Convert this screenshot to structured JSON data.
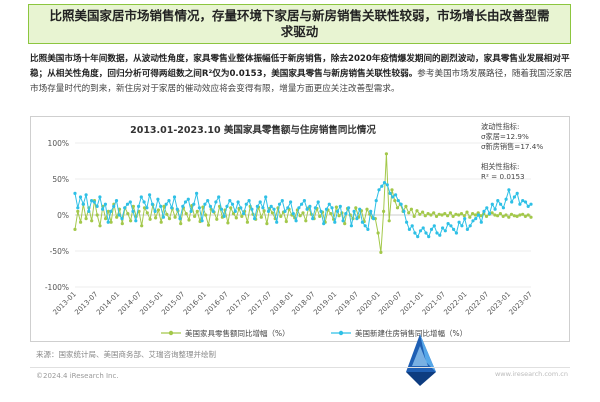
{
  "title": "比照美国家居市场销售情况，存量环境下家居与新房销售关联性较弱，市场增长由改善型需求驱动",
  "summary": {
    "bold": "比照美国市场十年间数据，从波动性角度，家具零售业整体振幅低于新房销售，除去2020年疫情爆发期间的剧烈波动，家具零售业发展相对平稳；从相关性角度，回归分析可得两组数之间R²仅为0.0153，美国家具零售与新房销售关联性较弱。",
    "normal": "参考美国市场发展路径，随着我国泛家居市场存量时代的到来，新住房对于家居的催动效应将会变得有限，增量方面更应关注改善型需求。"
  },
  "source": "来源：国家统计局、美国商务部、艾瑞咨询整理并绘制",
  "copyright": "©2024.4 iResearch Inc.",
  "website": "www.iresearch.com.cn",
  "colors": {
    "furniture": "#a3c84a",
    "housing": "#2ec0e6",
    "accent": "#8cc63f"
  },
  "chart_data": {
    "type": "line",
    "title": "2013.01-2023.10 美国家具零售额与住房销售同比情况",
    "ylim": [
      -100,
      100
    ],
    "yticks": [
      100,
      50,
      0,
      -50,
      -100
    ],
    "ytick_labels": [
      "100%",
      "50%",
      "0%",
      "-50%",
      "-100%"
    ],
    "xtick_labels": [
      "2013-01",
      "2013-07",
      "2014-01",
      "2014-07",
      "2015-01",
      "2015-07",
      "2016-01",
      "2016-07",
      "2017-01",
      "2017-07",
      "2018-01",
      "2018-07",
      "2019-01",
      "2019-07",
      "2020-01",
      "2020-07",
      "2021-01",
      "2021-07",
      "2022-01",
      "2022-07",
      "2023-01",
      "2023-07"
    ],
    "legend_position": "bottom",
    "annotation_volatility": [
      "波动性指标:",
      "σ家居=12.9%",
      "σ新房销售=17.4%"
    ],
    "annotation_correlation": [
      "相关性指标:",
      "R² = 0.0153"
    ],
    "series": [
      {
        "name": "美国家具零售额同比增幅（%）",
        "values": [
          -20,
          5,
          -10,
          15,
          -5,
          10,
          -8,
          20,
          0,
          -15,
          12,
          -5,
          5,
          -10,
          15,
          -3,
          8,
          -12,
          10,
          2,
          -8,
          12,
          -2,
          5,
          -15,
          10,
          3,
          -6,
          14,
          -4,
          7,
          -10,
          12,
          1,
          -5,
          9,
          -3,
          6,
          -12,
          10,
          2,
          -7,
          13,
          -2,
          5,
          -9,
          11,
          0,
          -14,
          8,
          4,
          -6,
          12,
          -3,
          7,
          -11,
          10,
          2,
          -4,
          9,
          -2,
          5,
          -10,
          12,
          1,
          -6,
          11,
          -3,
          6,
          -12,
          9,
          3,
          -5,
          10,
          -2,
          4,
          -9,
          8,
          0,
          -4,
          7,
          -1,
          3,
          -8,
          10,
          1,
          -5,
          9,
          -2,
          4,
          -10,
          7,
          2,
          -6,
          11,
          -1,
          3,
          -12,
          9,
          0,
          -5,
          10,
          -3,
          6,
          -9,
          8,
          1,
          -4,
          -5,
          -25,
          -52,
          5,
          85,
          -8,
          35,
          20,
          10,
          15,
          5,
          12,
          3,
          8,
          -2,
          6,
          1,
          4,
          -1,
          2,
          0,
          3,
          -2,
          1,
          0,
          2,
          -1,
          3,
          -2,
          1,
          0,
          2,
          -1,
          4,
          -3,
          2,
          0,
          3,
          -1,
          2,
          -2,
          1,
          3,
          0,
          -1,
          2,
          -2,
          0,
          -3,
          1,
          -1,
          -2,
          0,
          1,
          -2,
          0,
          -3
        ],
        "color": "#a3c84a"
      },
      {
        "name": "美国新建住房销售同比增幅（%）",
        "values": [
          30,
          10,
          25,
          15,
          28,
          5,
          20,
          18,
          12,
          25,
          8,
          15,
          -10,
          5,
          12,
          20,
          0,
          -5,
          10,
          15,
          18,
          5,
          -8,
          12,
          25,
          18,
          10,
          28,
          15,
          5,
          22,
          12,
          -3,
          15,
          20,
          10,
          25,
          8,
          -5,
          12,
          18,
          22,
          5,
          15,
          30,
          10,
          -8,
          15,
          20,
          12,
          5,
          18,
          25,
          8,
          -2,
          12,
          20,
          15,
          5,
          18,
          10,
          2,
          15,
          20,
          8,
          -5,
          12,
          18,
          10,
          25,
          5,
          12,
          8,
          -10,
          15,
          20,
          5,
          10,
          18,
          2,
          -8,
          10,
          15,
          20,
          8,
          12,
          -5,
          10,
          18,
          5,
          -12,
          8,
          15,
          10,
          -10,
          5,
          12,
          -8,
          2,
          10,
          -15,
          5,
          -5,
          8,
          -10,
          -15,
          -20,
          5,
          -5,
          20,
          35,
          40,
          45,
          42,
          30,
          25,
          28,
          20,
          15,
          5,
          -10,
          -20,
          -15,
          -25,
          -30,
          -22,
          -18,
          -25,
          -30,
          -20,
          -15,
          -25,
          -28,
          -18,
          -22,
          -12,
          -15,
          -20,
          -25,
          -10,
          -15,
          -5,
          -20,
          -15,
          -8,
          -5,
          0,
          -10,
          5,
          10,
          2,
          15,
          8,
          20,
          15,
          10,
          22,
          35,
          18,
          25,
          30,
          15,
          20,
          18,
          12,
          15
        ],
        "color": "#2ec0e6"
      }
    ]
  }
}
